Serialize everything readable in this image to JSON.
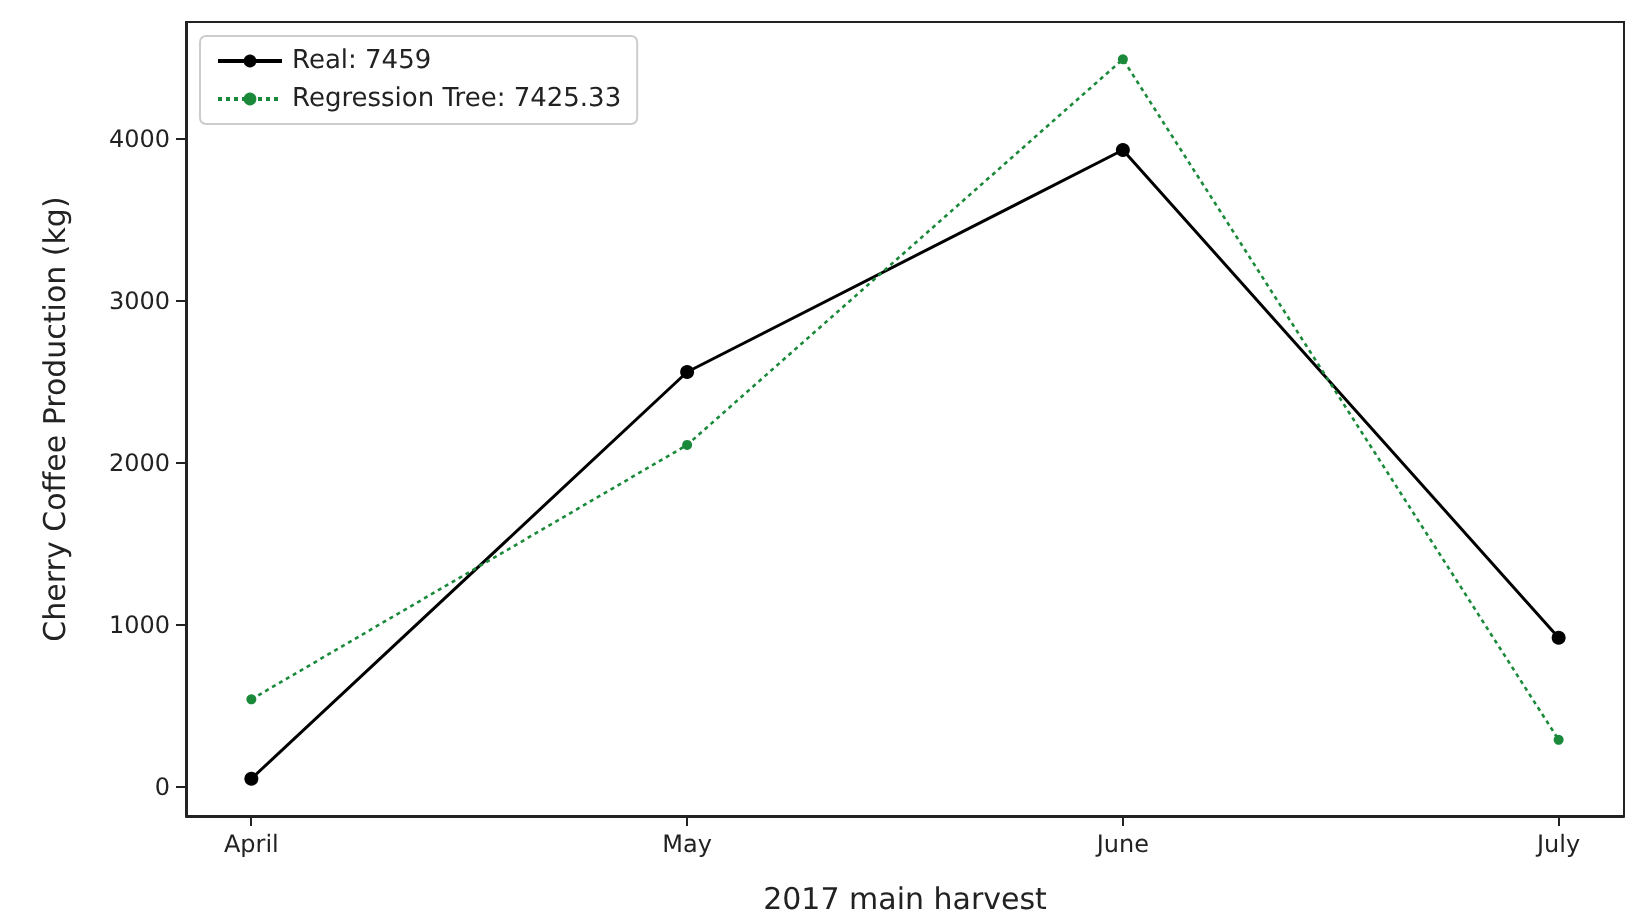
{
  "chart_data": {
    "type": "line",
    "xlabel": "2017 main harvest",
    "ylabel": "Cherry Coffee Production (kg)",
    "categories": [
      "April",
      "May",
      "June",
      "July"
    ],
    "series": [
      {
        "name": "Real: 7459",
        "color": "#000000",
        "values": [
          50,
          2560,
          3930,
          920
        ],
        "line_style": "solid",
        "marker": "circle"
      },
      {
        "name": "Regression Tree: 7425.33",
        "color": "#1a8a3a",
        "values": [
          540,
          2110,
          4490,
          290
        ],
        "line_style": "dotted",
        "marker": "circle"
      }
    ],
    "ylim": [
      -180,
      4720
    ],
    "yticks": [
      0,
      1000,
      2000,
      3000,
      4000
    ],
    "grid": false,
    "legend": "top left"
  }
}
